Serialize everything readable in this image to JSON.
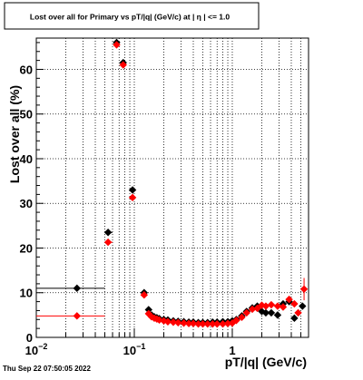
{
  "chart_data": {
    "type": "scatter",
    "title": "Lost over all for Primary vs pT/|q| (GeV/c) at |  η  | <= 1.0",
    "xlabel": "pT/|q| (GeV/c)",
    "ylabel": "Lost over all (%)",
    "x_scale": "log",
    "xlim": [
      0.01,
      6.0
    ],
    "ylim": [
      0,
      67
    ],
    "grid": true,
    "x_ticks": [
      {
        "value": 0.01,
        "base": "10",
        "exp": "−2"
      },
      {
        "value": 0.1,
        "base": "10",
        "exp": "−1"
      },
      {
        "value": 1,
        "base": "1",
        "exp": ""
      }
    ],
    "y_ticks": [
      0,
      10,
      20,
      30,
      40,
      50,
      60
    ],
    "series": [
      {
        "color": "#000000",
        "marker": "diamond",
        "points": [
          {
            "x": 0.026,
            "y": 11.0,
            "xlo": 0.01,
            "xhi": 0.05
          },
          {
            "x": 0.054,
            "y": 23.5,
            "xlo": 0.05,
            "xhi": 0.06
          },
          {
            "x": 0.066,
            "y": 66.0,
            "xlo": 0.063,
            "xhi": 0.07
          },
          {
            "x": 0.077,
            "y": 61.5,
            "xlo": 0.074,
            "xhi": 0.08
          },
          {
            "x": 0.096,
            "y": 33.0,
            "xlo": 0.09,
            "xhi": 0.103
          },
          {
            "x": 0.126,
            "y": 10.0,
            "xlo": 0.12,
            "xhi": 0.132
          },
          {
            "x": 0.14,
            "y": 6.2
          },
          {
            "x": 0.15,
            "y": 5.0
          },
          {
            "x": 0.16,
            "y": 4.6
          },
          {
            "x": 0.17,
            "y": 4.4
          },
          {
            "x": 0.18,
            "y": 4.2
          },
          {
            "x": 0.2,
            "y": 4.0
          },
          {
            "x": 0.22,
            "y": 3.9
          },
          {
            "x": 0.25,
            "y": 3.7
          },
          {
            "x": 0.28,
            "y": 3.6
          },
          {
            "x": 0.32,
            "y": 3.5
          },
          {
            "x": 0.36,
            "y": 3.4
          },
          {
            "x": 0.4,
            "y": 3.4
          },
          {
            "x": 0.45,
            "y": 3.3
          },
          {
            "x": 0.5,
            "y": 3.3
          },
          {
            "x": 0.56,
            "y": 3.3
          },
          {
            "x": 0.63,
            "y": 3.4
          },
          {
            "x": 0.7,
            "y": 3.4
          },
          {
            "x": 0.8,
            "y": 3.5
          },
          {
            "x": 0.9,
            "y": 3.5
          },
          {
            "x": 1.0,
            "y": 3.7
          },
          {
            "x": 1.1,
            "y": 4.0
          },
          {
            "x": 1.25,
            "y": 4.8
          },
          {
            "x": 1.4,
            "y": 5.8
          },
          {
            "x": 1.6,
            "y": 6.6
          },
          {
            "x": 1.8,
            "y": 7.0
          },
          {
            "x": 2.0,
            "y": 5.8
          },
          {
            "x": 2.2,
            "y": 5.5
          },
          {
            "x": 2.5,
            "y": 5.5
          },
          {
            "x": 2.9,
            "y": 5.0
          },
          {
            "x": 3.3,
            "y": 7.5
          },
          {
            "x": 3.8,
            "y": 8.0
          },
          {
            "x": 4.3,
            "y": 4.3
          },
          {
            "x": 5.2,
            "y": 7.0
          }
        ]
      },
      {
        "color": "#ff0000",
        "marker": "diamond",
        "points": [
          {
            "x": 0.026,
            "y": 4.8,
            "xlo": 0.01,
            "xhi": 0.05
          },
          {
            "x": 0.054,
            "y": 21.3,
            "xlo": 0.05,
            "xhi": 0.06
          },
          {
            "x": 0.066,
            "y": 65.5,
            "xlo": 0.063,
            "xhi": 0.07
          },
          {
            "x": 0.077,
            "y": 61.0,
            "xlo": 0.074,
            "xhi": 0.08
          },
          {
            "x": 0.096,
            "y": 31.3,
            "xlo": 0.09,
            "xhi": 0.103
          },
          {
            "x": 0.126,
            "y": 9.5,
            "xlo": 0.12,
            "xhi": 0.132
          },
          {
            "x": 0.14,
            "y": 5.3
          },
          {
            "x": 0.15,
            "y": 4.6
          },
          {
            "x": 0.16,
            "y": 4.3
          },
          {
            "x": 0.17,
            "y": 4.1
          },
          {
            "x": 0.18,
            "y": 3.9
          },
          {
            "x": 0.2,
            "y": 3.7
          },
          {
            "x": 0.22,
            "y": 3.5
          },
          {
            "x": 0.25,
            "y": 3.4
          },
          {
            "x": 0.28,
            "y": 3.3
          },
          {
            "x": 0.32,
            "y": 3.2
          },
          {
            "x": 0.36,
            "y": 3.1
          },
          {
            "x": 0.4,
            "y": 3.1
          },
          {
            "x": 0.45,
            "y": 3.0
          },
          {
            "x": 0.5,
            "y": 3.0
          },
          {
            "x": 0.56,
            "y": 3.0
          },
          {
            "x": 0.63,
            "y": 3.0
          },
          {
            "x": 0.7,
            "y": 3.0
          },
          {
            "x": 0.8,
            "y": 3.0
          },
          {
            "x": 0.9,
            "y": 3.1
          },
          {
            "x": 1.0,
            "y": 3.2
          },
          {
            "x": 1.1,
            "y": 3.8
          },
          {
            "x": 1.25,
            "y": 4.5
          },
          {
            "x": 1.4,
            "y": 5.5
          },
          {
            "x": 1.6,
            "y": 6.3
          },
          {
            "x": 1.8,
            "y": 6.5
          },
          {
            "x": 2.0,
            "y": 7.2
          },
          {
            "x": 2.2,
            "y": 7.0
          },
          {
            "x": 2.5,
            "y": 7.3
          },
          {
            "x": 2.9,
            "y": 7.0
          },
          {
            "x": 3.3,
            "y": 6.8
          },
          {
            "x": 3.8,
            "y": 8.5
          },
          {
            "x": 4.3,
            "y": 7.5
          },
          {
            "x": 4.7,
            "y": 5.5
          },
          {
            "x": 5.4,
            "y": 10.8,
            "yerr": 2.5
          }
        ]
      }
    ]
  },
  "footer": {
    "timestamp": "Thu Sep 22 07:50:05 2022"
  }
}
